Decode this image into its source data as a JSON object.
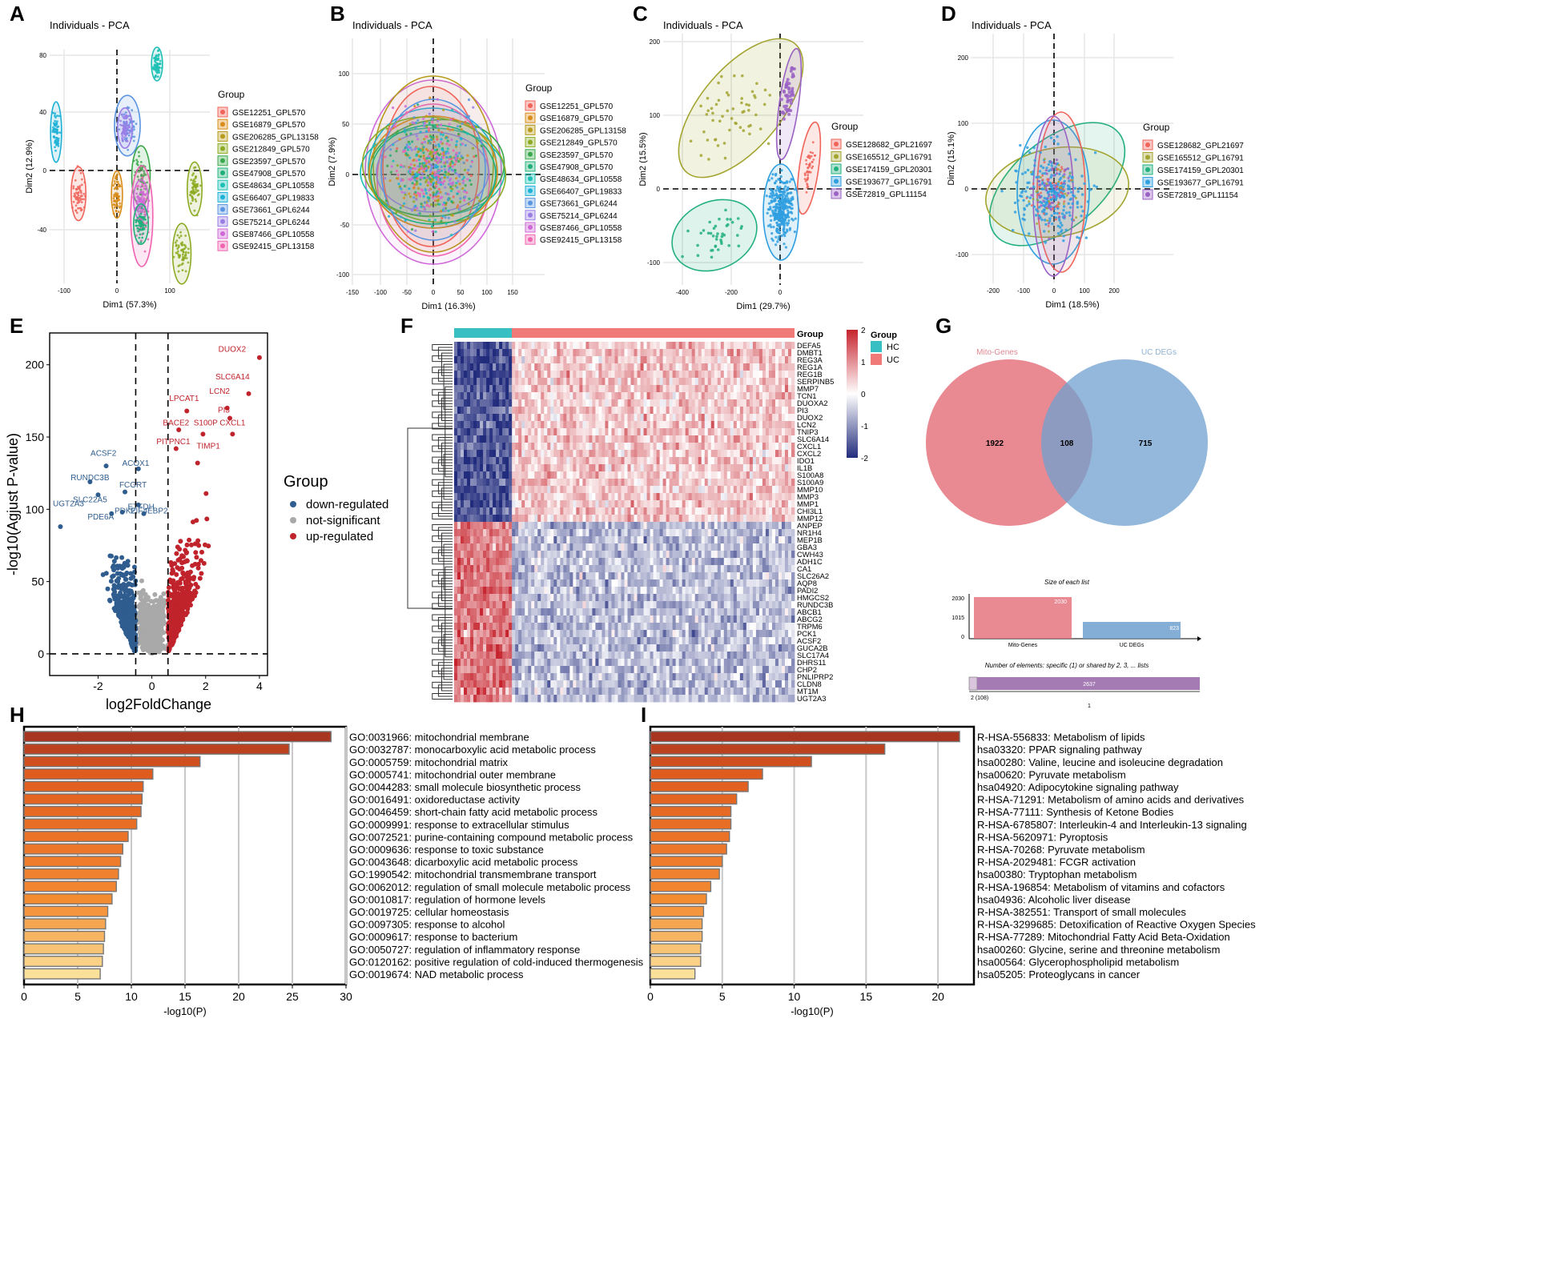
{
  "panel_letters": [
    "A",
    "B",
    "C",
    "D",
    "E",
    "F",
    "G",
    "H",
    "I"
  ],
  "pca": [
    {
      "letter": "A",
      "title": "Individuals - PCA",
      "xlabel": "Dim1 (57.3%)",
      "ylabel": "Dim2 (12.9%)",
      "xticks": [
        "-100",
        "0",
        "100"
      ],
      "yticks": [
        "80",
        "40",
        "0",
        "-40"
      ],
      "legend_title": "Group",
      "groups": [
        "GSE12251_GPL570",
        "GSE16879_GPL570",
        "GSE206285_GPL13158",
        "GSE212849_GPL570",
        "GSE23597_GPL570",
        "GSE47908_GPL570",
        "GSE48634_GPL10558",
        "GSE66407_GPL19833",
        "GSE73661_GPL6244",
        "GSE75214_GPL6244",
        "GSE87466_GPL10558",
        "GSE92415_GPL13158"
      ]
    },
    {
      "letter": "B",
      "title": "Individuals - PCA",
      "xlabel": "Dim1 (16.3%)",
      "ylabel": "Dim2 (7.9%)",
      "xticks": [
        "-150",
        "-100",
        "-50",
        "0",
        "50",
        "100",
        "150"
      ],
      "yticks": [
        "100",
        "50",
        "0",
        "-50",
        "-100"
      ],
      "legend_title": "Group",
      "groups": [
        "GSE12251_GPL570",
        "GSE16879_GPL570",
        "GSE206285_GPL13158",
        "GSE212849_GPL570",
        "GSE23597_GPL570",
        "GSE47908_GPL570",
        "GSE48634_GPL10558",
        "GSE66407_GPL19833",
        "GSE73661_GPL6244",
        "GSE75214_GPL6244",
        "GSE87466_GPL10558",
        "GSE92415_GPL13158"
      ]
    },
    {
      "letter": "C",
      "title": "Individuals - PCA",
      "xlabel": "Dim1 (29.7%)",
      "ylabel": "Dim2 (15.5%)",
      "xticks": [
        "-400",
        "-200",
        "0"
      ],
      "yticks": [
        "200",
        "100",
        "0",
        "-100"
      ],
      "legend_title": "Group",
      "groups": [
        "GSE128682_GPL21697",
        "GSE165512_GPL16791",
        "GSE174159_GPL20301",
        "GSE193677_GPL16791",
        "GSE72819_GPL11154"
      ]
    },
    {
      "letter": "D",
      "title": "Individuals - PCA",
      "xlabel": "Dim1 (18.5%)",
      "ylabel": "Dim2 (15.1%)",
      "xticks": [
        "-200",
        "-100",
        "0",
        "100",
        "200"
      ],
      "yticks": [
        "200",
        "100",
        "0",
        "-100"
      ],
      "legend_title": "Group",
      "groups": [
        "GSE128682_GPL21697",
        "GSE165512_GPL16791",
        "GSE174159_GPL20301",
        "GSE193677_GPL16791",
        "GSE72819_GPL11154"
      ]
    }
  ],
  "colors": {
    "g12": [
      "#f0645a",
      "#d98c1a",
      "#b69a1a",
      "#8cab22",
      "#3aa84a",
      "#1fb07a",
      "#1cbfb4",
      "#1cb0d6",
      "#5a95e0",
      "#9a7ee6",
      "#cf68d8",
      "#ef63b0"
    ],
    "g5": [
      "#f0645a",
      "#a3a530",
      "#22b07e",
      "#2f9fe0",
      "#9a62c4"
    ],
    "down": "#2f5d8f",
    "ns": "#a9a9a9",
    "up": "#c0232b",
    "venn_a": "#e46d78",
    "venn_b": "#6fa0cf",
    "bar_dark": "#a83520",
    "bar_light": "#fbe099"
  },
  "volcano": {
    "letter": "E",
    "xlabel": "log2FoldChange",
    "ylabel": "-log10(Agjust P-value)",
    "xticks": [
      "-2",
      "0",
      "2",
      "4"
    ],
    "yticks": [
      "200",
      "150",
      "100",
      "50",
      "0"
    ],
    "legend_title": "Group",
    "legend": [
      "down-regulated",
      "not-significant",
      "up-regulated"
    ],
    "up_labels": [
      "DUOX2",
      "SLC6A14",
      "LCN2",
      "PI3",
      "LPCAT1",
      "BACE2",
      "S100P",
      "CXCL1",
      "PITPNC1",
      "TIMP1"
    ],
    "down_labels": [
      "ACSF2",
      "ACOX1",
      "RUNDC3B",
      "FCGRT",
      "SLC22A5",
      "ETFDH",
      "UGT2A3",
      "PDK2",
      "EIF4EBP2",
      "PDE6A"
    ]
  },
  "heatmap": {
    "letter": "F",
    "group_label": "Group",
    "legend_title": "Group",
    "legend": [
      "HC",
      "UC"
    ],
    "scale": [
      "2",
      "1",
      "0",
      "-1",
      "-2"
    ],
    "genes": [
      "DEFA5",
      "DMBT1",
      "REG3A",
      "REG1A",
      "REG1B",
      "SERPINB5",
      "MMP7",
      "TCN1",
      "DUOXA2",
      "PI3",
      "DUOX2",
      "LCN2",
      "TNIP3",
      "SLC6A14",
      "CXCL1",
      "CXCL2",
      "IDO1",
      "IL1B",
      "S100A8",
      "S100A9",
      "MMP10",
      "MMP3",
      "MMP1",
      "CHI3L1",
      "MMP12",
      "ANPEP",
      "NR1H4",
      "MEP1B",
      "GBA3",
      "CWH43",
      "ADH1C",
      "CA1",
      "SLC26A2",
      "AQP8",
      "PADI2",
      "HMGCS2",
      "RUNDC3B",
      "ABCB1",
      "ABCG2",
      "TRPM6",
      "PCK1",
      "ACSF2",
      "GUCA2B",
      "SLC17A4",
      "DHRS11",
      "CHP2",
      "PNLIPRP2",
      "CLDN8",
      "MT1M",
      "UGT2A3"
    ]
  },
  "venn": {
    "letter": "G",
    "set_a": "Mito-Genes",
    "set_b": "UC DEGs",
    "only_a": "1922",
    "both": "108",
    "only_b": "715",
    "size_title": "Size of each list",
    "size_yticks": [
      "2030",
      "1015",
      "0"
    ],
    "size_values": [
      "2030",
      "823"
    ],
    "size_cats": [
      "Mito-Genes",
      "UC DEGs"
    ],
    "elements_title": "Number of elements: specific (1) or shared by 2, 3, ... lists",
    "elements_value": "2637",
    "elements_label": "2 (108)",
    "elements_axis": "1"
  },
  "chart_data": [
    {
      "type": "bar",
      "title": "",
      "xlabel": "-log10(P)",
      "xlim": [
        0,
        30
      ],
      "categories": [
        "GO:0031966: mitochondrial membrane",
        "GO:0032787: monocarboxylic acid metabolic process",
        "GO:0005759: mitochondrial matrix",
        "GO:0005741: mitochondrial outer membrane",
        "GO:0044283: small molecule biosynthetic process",
        "GO:0016491: oxidoreductase activity",
        "GO:0046459: short-chain fatty acid metabolic process",
        "GO:0009991: response to extracellular stimulus",
        "GO:0072521: purine-containing compound metabolic process",
        "GO:0009636: response to toxic substance",
        "GO:0043648: dicarboxylic acid metabolic process",
        "GO:1990542: mitochondrial transmembrane transport",
        "GO:0062012: regulation of small molecule metabolic process",
        "GO:0010817: regulation of hormone levels",
        "GO:0019725: cellular homeostasis",
        "GO:0097305: response to alcohol",
        "GO:0009617: response to bacterium",
        "GO:0050727: regulation of inflammatory response",
        "GO:0120162: positive regulation of cold-induced thermogenesis",
        "GO:0019674: NAD metabolic process"
      ],
      "values": [
        28.6,
        24.7,
        16.4,
        12.0,
        11.1,
        11.0,
        10.9,
        10.5,
        9.7,
        9.2,
        9.0,
        8.8,
        8.6,
        8.2,
        7.8,
        7.6,
        7.5,
        7.4,
        7.3,
        7.1
      ],
      "xticks": [
        "0",
        "5",
        "10",
        "15",
        "20",
        "25",
        "30"
      ]
    },
    {
      "type": "bar",
      "title": "",
      "xlabel": "-log10(P)",
      "xlim": [
        0,
        22.5
      ],
      "categories": [
        "R-HSA-556833: Metabolism of lipids",
        "hsa03320: PPAR signaling pathway",
        "hsa00280: Valine, leucine and isoleucine degradation",
        "hsa00620: Pyruvate metabolism",
        "hsa04920: Adipocytokine signaling pathway",
        "R-HSA-71291: Metabolism of amino acids and derivatives",
        "R-HSA-77111: Synthesis of Ketone Bodies",
        "R-HSA-6785807: Interleukin-4 and Interleukin-13 signaling",
        "R-HSA-5620971: Pyroptosis",
        "R-HSA-70268: Pyruvate metabolism",
        "R-HSA-2029481: FCGR activation",
        "hsa00380: Tryptophan metabolism",
        "R-HSA-196854: Metabolism of vitamins and cofactors",
        "hsa04936: Alcoholic liver disease",
        "R-HSA-382551: Transport of small molecules",
        "R-HSA-3299685: Detoxification of Reactive Oxygen Species",
        "R-HSA-77289: Mitochondrial Fatty Acid Beta-Oxidation",
        "hsa00260: Glycine, serine and threonine metabolism",
        "hsa00564: Glycerophospholipid metabolism",
        "hsa05205: Proteoglycans in cancer"
      ],
      "values": [
        21.5,
        16.3,
        11.2,
        7.8,
        6.8,
        6.0,
        5.6,
        5.6,
        5.5,
        5.3,
        5.0,
        4.8,
        4.2,
        3.9,
        3.7,
        3.6,
        3.6,
        3.5,
        3.5,
        3.1
      ],
      "xticks": [
        "0",
        "5",
        "10",
        "15",
        "20"
      ]
    }
  ]
}
